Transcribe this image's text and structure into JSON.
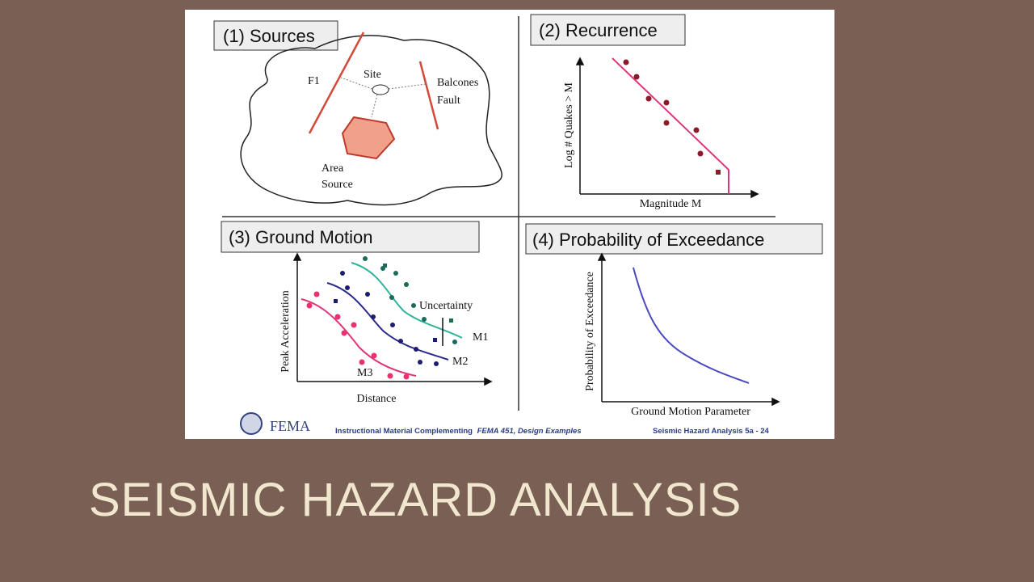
{
  "slide": {
    "title": "SEISMIC HAZARD ANALYSIS"
  },
  "panels": [
    {
      "title": "(1) Sources",
      "labels": {
        "fault_1": "F1",
        "site": "Site",
        "fault_2": [
          "Balcones",
          "Fault"
        ],
        "area": [
          "Area",
          "Source"
        ]
      }
    },
    {
      "title": "(2) Recurrence",
      "y_label": "Log # Quakes > M",
      "x_label": "Magnitude M"
    },
    {
      "title": "(3) Ground Motion",
      "y_label": "Peak Acceleration",
      "x_label": "Distance",
      "labels": {
        "uncertainty": "Uncertainty",
        "curves": [
          "M1",
          "M2",
          "M3"
        ]
      }
    },
    {
      "title": "(4) Probability of Exceedance",
      "y_label": "Probability of Exceedance",
      "x_label": "Ground Motion Parameter"
    }
  ],
  "footer": {
    "logo": "FEMA",
    "left": [
      "Instructional Material Complementing",
      "FEMA 451, Design Examples"
    ],
    "right": "Seismic Hazard Analysis 5a - 24"
  }
}
